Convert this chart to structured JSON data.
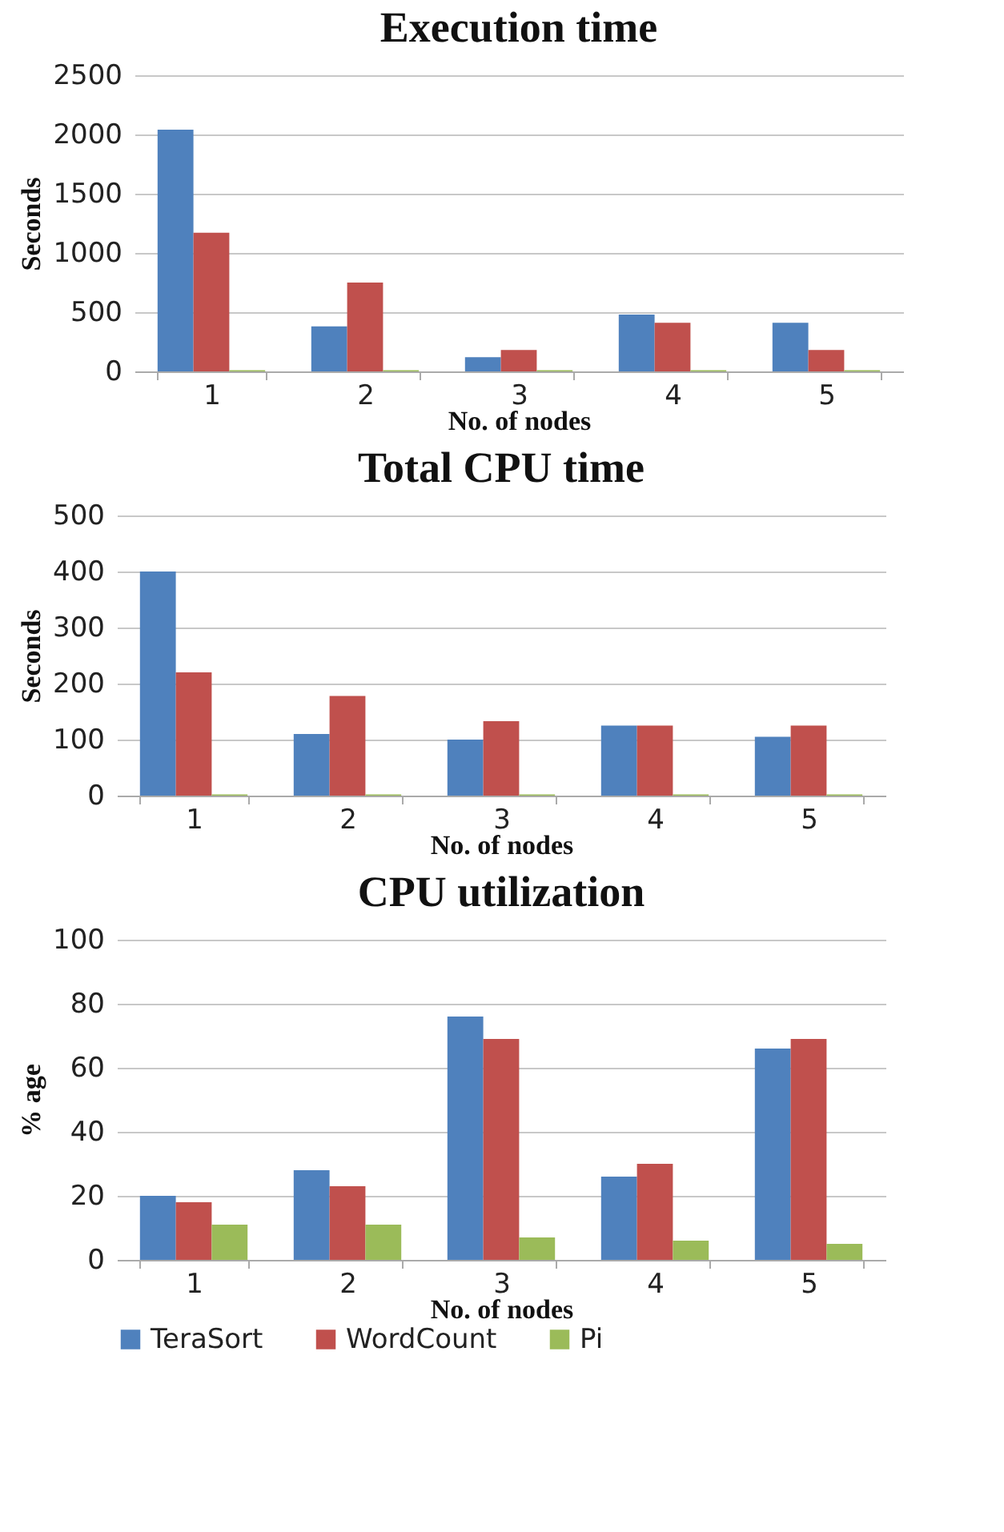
{
  "chart_data": [
    {
      "type": "bar",
      "title": "Execution time",
      "xlabel": "No. of nodes",
      "ylabel": "Seconds",
      "categories": [
        "1",
        "2",
        "3",
        "4",
        "5"
      ],
      "series": [
        {
          "color": "#4f81bd",
          "values": [
            2040,
            380,
            120,
            480,
            410
          ]
        },
        {
          "color": "#c0504d",
          "values": [
            1170,
            750,
            180,
            410,
            180
          ]
        },
        {
          "color": "#9bbb59",
          "values": [
            10,
            10,
            10,
            10,
            10
          ]
        }
      ],
      "ylim": [
        0,
        2500
      ],
      "yticks": [
        0,
        500,
        1000,
        1500,
        2000,
        2500
      ],
      "grid": "y",
      "legend": false
    },
    {
      "type": "bar",
      "title": "Total CPU time",
      "xlabel": "No. of nodes",
      "ylabel": "Seconds",
      "categories": [
        "1",
        "2",
        "3",
        "4",
        "5"
      ],
      "series": [
        {
          "color": "#4f81bd",
          "values": [
            400,
            110,
            100,
            125,
            105
          ]
        },
        {
          "color": "#c0504d",
          "values": [
            220,
            178,
            133,
            125,
            125
          ]
        },
        {
          "color": "#9bbb59",
          "values": [
            2,
            2,
            2,
            2,
            2
          ]
        }
      ],
      "ylim": [
        0,
        500
      ],
      "yticks": [
        0,
        100,
        200,
        300,
        400,
        500
      ],
      "grid": "y",
      "legend": false
    },
    {
      "type": "bar",
      "title": "CPU utilization",
      "xlabel": "No. of nodes",
      "ylabel": "% age",
      "categories": [
        "1",
        "2",
        "3",
        "4",
        "5"
      ],
      "series": [
        {
          "name": "TeraSort",
          "color": "#4f81bd",
          "values": [
            20,
            28,
            76,
            26,
            66
          ]
        },
        {
          "name": "WordCount",
          "color": "#c0504d",
          "values": [
            18,
            23,
            69,
            30,
            69
          ]
        },
        {
          "name": "Pi",
          "color": "#9bbb59",
          "values": [
            11,
            11,
            7,
            6,
            5
          ]
        }
      ],
      "ylim": [
        0,
        100
      ],
      "yticks": [
        0,
        20,
        40,
        60,
        80,
        100
      ],
      "grid": "y",
      "legend": "bottom"
    }
  ]
}
